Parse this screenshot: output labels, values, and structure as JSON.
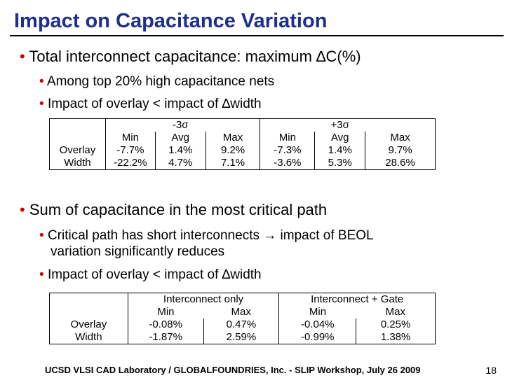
{
  "title": "Impact on Capacitance Variation",
  "bullets": {
    "b1": "Total interconnect capacitance: maximum ∆C(%)",
    "b1_sub1": "Among top 20% high capacitance nets",
    "b1_sub2": "Impact of overlay < impact of ∆width",
    "b2": "Sum of capacitance in the most critical path",
    "b2_sub1_a": "Critical path has short interconnects ",
    "b2_sub1_arrow": "→",
    "b2_sub1_b": " impact of BEOL",
    "b2_sub1_c": "variation significantly reduces",
    "b2_sub2": "Impact of overlay < impact of ∆width",
    "dot": "•"
  },
  "table1": {
    "group_minus": "-3σ",
    "group_plus": "+3σ",
    "columns": [
      "Min",
      "Avg",
      "Max",
      "Min",
      "Avg",
      "Max"
    ],
    "rows": [
      {
        "label": "Overlay",
        "values": [
          "-7.7%",
          "1.4%",
          "9.2%",
          "-7.3%",
          "1.4%",
          "9.7%"
        ]
      },
      {
        "label": "Width",
        "values": [
          "-22.2%",
          "4.7%",
          "7.1%",
          "-3.6%",
          "5.3%",
          "28.6%"
        ]
      }
    ]
  },
  "table2": {
    "group_a": "Interconnect only",
    "group_b": "Interconnect + Gate",
    "columns": [
      "Min",
      "Max",
      "Min",
      "Max"
    ],
    "rows": [
      {
        "label": "Overlay",
        "values": [
          "-0.08%",
          "0.47%",
          "-0.04%",
          "0.25%"
        ]
      },
      {
        "label": "Width",
        "values": [
          "-1.87%",
          "2.59%",
          "-0.99%",
          "1.38%"
        ]
      }
    ]
  },
  "footer": "UCSD VLSI CAD Laboratory /  GLOBALFOUNDRIES, Inc.  - SLIP Workshop, July 26 2009",
  "page_number": "18"
}
